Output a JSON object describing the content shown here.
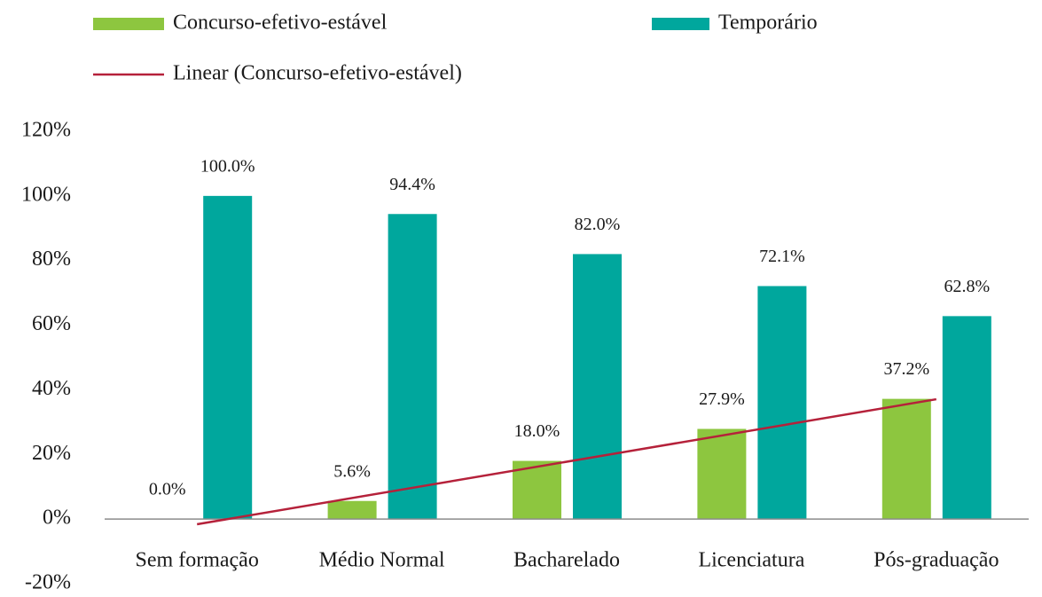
{
  "chart_data": {
    "type": "bar",
    "categories": [
      "Sem formação",
      "Médio Normal",
      "Bacharelado",
      "Licenciatura",
      "Pós-graduação"
    ],
    "series": [
      {
        "name": "Concurso-efetivo-estável",
        "color": "#8dc63f",
        "values": [
          0,
          5.6,
          18,
          27.9,
          37.2
        ],
        "value_labels": [
          "0.0%",
          "5.6%",
          "18.0%",
          "27.9%",
          "37.2%"
        ]
      },
      {
        "name": "Temporário",
        "color": "#00a79d",
        "values": [
          100,
          94.4,
          82,
          72.1,
          62.8
        ],
        "value_labels": [
          "100.0%",
          "94.4%",
          "82.0%",
          "72.1%",
          "62.8%"
        ]
      }
    ],
    "trendline": {
      "name": "Linear (Concurso-efetivo-estável)",
      "color": "#b5213a",
      "series": 0
    },
    "ylim": [
      -20,
      120
    ],
    "yticks": [
      {
        "value": -20,
        "label": "-20%"
      },
      {
        "value": 0,
        "label": "0%"
      },
      {
        "value": 20,
        "label": "20%"
      },
      {
        "value": 40,
        "label": "40%"
      },
      {
        "value": 60,
        "label": "60%"
      },
      {
        "value": 80,
        "label": "80%"
      },
      {
        "value": 100,
        "label": "100%"
      },
      {
        "value": 120,
        "label": "120%"
      }
    ],
    "grid": false
  }
}
